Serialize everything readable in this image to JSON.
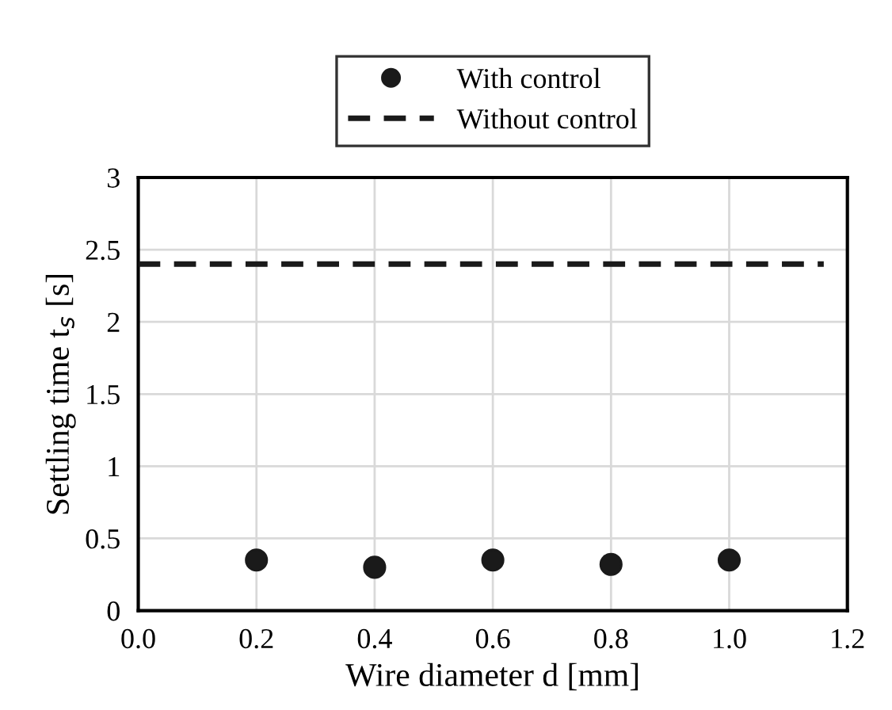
{
  "chart_data": {
    "type": "scatter",
    "xlabel": "Wire diameter d [mm]",
    "ylabel": "Settling time t$_{s}$ [s]",
    "series": [
      {
        "name": "With control",
        "color": "#1a1a1a",
        "marker": "circle",
        "x": [
          0.2,
          0.4,
          0.6,
          0.8,
          1.0
        ],
        "values": [
          0.35,
          0.3,
          0.35,
          0.32,
          0.35
        ]
      },
      {
        "name": "Without control",
        "type": "line",
        "color": "#1a1a1a",
        "line_style": "dashed",
        "x": [
          0.0,
          1.16
        ],
        "values": [
          2.4,
          2.4
        ]
      }
    ],
    "xlim": [
      0,
      1.2
    ],
    "xticks": [
      {
        "value": 0,
        "label": "0.0"
      },
      0.2,
      0.4,
      0.6,
      0.8,
      {
        "value": 1,
        "label": "1.0"
      },
      1.2
    ],
    "ylim": [
      0,
      3
    ],
    "yticks": [
      0,
      0.5,
      1,
      1.5,
      2,
      2.5,
      3
    ],
    "grid": true,
    "legend": "top"
  }
}
